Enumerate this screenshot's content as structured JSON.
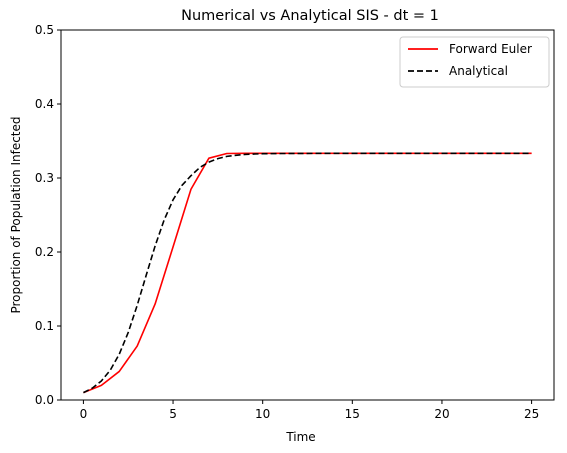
{
  "chart_data": {
    "type": "line",
    "title": "Numerical vs Analytical SIS - dt = 1",
    "xlabel": "Time",
    "ylabel": "Proportion of Population Infected",
    "xlim": [
      -1.25,
      26.25
    ],
    "ylim": [
      0,
      0.5
    ],
    "xticks": [
      0,
      5,
      10,
      15,
      20,
      25
    ],
    "yticks": [
      0.0,
      0.1,
      0.2,
      0.3,
      0.4,
      0.5
    ],
    "ytick_labels": [
      "0.0",
      "0.1",
      "0.2",
      "0.3",
      "0.4",
      "0.5"
    ],
    "grid": false,
    "legend": {
      "position": "top-right"
    },
    "series": [
      {
        "name": "Forward Euler",
        "color": "#ff0000",
        "style": "solid",
        "x": [
          0,
          1,
          2,
          3,
          4,
          5,
          6,
          7,
          8,
          9,
          10,
          11,
          12,
          13,
          14,
          15,
          16,
          17,
          18,
          19,
          20,
          21,
          22,
          23,
          24,
          25
        ],
        "y": [
          0.01,
          0.0197,
          0.0386,
          0.0729,
          0.1298,
          0.2069,
          0.2848,
          0.3268,
          0.3331,
          0.3333,
          0.3333,
          0.3333,
          0.3333,
          0.3333,
          0.3333,
          0.3333,
          0.3333,
          0.3333,
          0.3333,
          0.3333,
          0.3333,
          0.3333,
          0.3333,
          0.3333,
          0.3333,
          0.3333
        ]
      },
      {
        "name": "Analytical",
        "color": "#000000",
        "style": "dashed",
        "x": [
          0,
          0.5,
          1,
          1.5,
          2,
          2.5,
          3,
          3.5,
          4,
          4.5,
          5,
          5.5,
          6,
          6.5,
          7,
          7.5,
          8,
          8.5,
          9,
          9.5,
          10,
          11,
          12,
          13,
          14,
          15,
          16,
          17,
          18,
          19,
          20,
          21,
          22,
          23,
          24,
          25
        ],
        "y": [
          0.01,
          0.0161,
          0.0257,
          0.0404,
          0.0619,
          0.0913,
          0.1279,
          0.1684,
          0.2082,
          0.2431,
          0.2705,
          0.2901,
          0.3031,
          0.3144,
          0.3215,
          0.3262,
          0.3292,
          0.3307,
          0.3318,
          0.3324,
          0.3328,
          0.3331,
          0.3332,
          0.3333,
          0.3333,
          0.3333,
          0.3333,
          0.3333,
          0.3333,
          0.3333,
          0.3333,
          0.3333,
          0.3333,
          0.3333,
          0.3333,
          0.3333
        ]
      }
    ]
  }
}
